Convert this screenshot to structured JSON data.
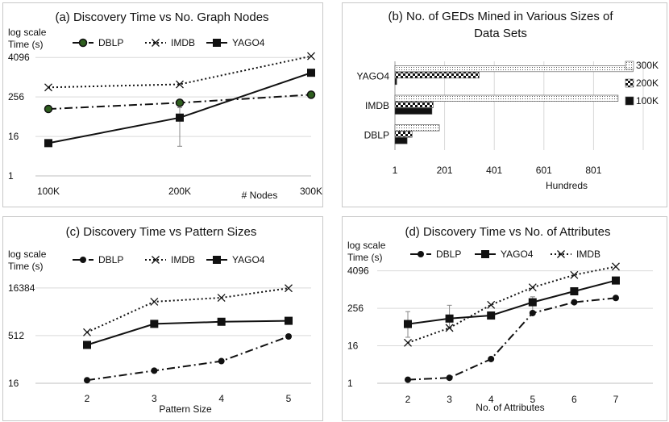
{
  "chart_data": [
    {
      "id": "a",
      "type": "line",
      "title": "(a) Discovery Time vs No. Graph Nodes",
      "ylabel_lines": [
        "log scale",
        "Time (s)"
      ],
      "xlabel": "# Nodes",
      "y_scale": "log2",
      "ylim": [
        1,
        8192
      ],
      "y_ticks": [
        1,
        16,
        256,
        4096
      ],
      "categories": [
        "100K",
        "200K",
        "300K"
      ],
      "series": [
        {
          "name": "DBLP",
          "values": [
            110,
            170,
            300
          ],
          "style": "dashdot",
          "marker": "circle-green"
        },
        {
          "name": "IMDB",
          "values": [
            500,
            620,
            4500
          ],
          "style": "dotted",
          "marker": "x"
        },
        {
          "name": "YAGO4",
          "values": [
            10,
            60,
            1400
          ],
          "style": "solid",
          "marker": "square"
        }
      ],
      "error_bars": [
        {
          "series": "YAGO4",
          "index": 1,
          "low": 8,
          "high": 120
        }
      ],
      "legend": "top"
    },
    {
      "id": "b",
      "type": "bar",
      "orientation": "horizontal",
      "title_lines": [
        "(b) No. of GEDs Mined in Various Sizes of",
        "Data Sets"
      ],
      "xlabel": "Hundreds",
      "xlim": [
        1,
        1001
      ],
      "x_ticks": [
        1,
        201,
        401,
        601,
        801
      ],
      "categories": [
        "YAGO4",
        "IMDB",
        "DBLP"
      ],
      "series": [
        {
          "name": "300K",
          "values": [
            960,
            900,
            180
          ],
          "pattern": "dots"
        },
        {
          "name": "200K",
          "values": [
            340,
            155,
            70
          ],
          "pattern": "checker"
        },
        {
          "name": "100K",
          "values": [
            8,
            150,
            50
          ],
          "pattern": "solid"
        }
      ],
      "legend": "right"
    },
    {
      "id": "c",
      "type": "line",
      "title": "(c) Discovery Time vs Pattern Sizes",
      "ylabel_lines": [
        "log scale",
        "Time (s)"
      ],
      "xlabel": "Pattern Size",
      "y_scale": "log2",
      "ylim": [
        16,
        32768
      ],
      "y_ticks": [
        16,
        512,
        16384
      ],
      "categories": [
        "2",
        "3",
        "4",
        "5"
      ],
      "series": [
        {
          "name": "DBLP",
          "values": [
            20,
            40,
            80,
            480
          ],
          "style": "dashdot",
          "marker": "circle"
        },
        {
          "name": "IMDB",
          "values": [
            650,
            6000,
            8000,
            16000
          ],
          "style": "dotted",
          "marker": "x"
        },
        {
          "name": "YAGO4",
          "values": [
            260,
            1200,
            1400,
            1500
          ],
          "style": "solid",
          "marker": "square"
        }
      ],
      "legend": "top"
    },
    {
      "id": "d",
      "type": "line",
      "title": "(d) Discovery Time vs No. of Attributes",
      "ylabel_lines": [
        "log scale",
        "Time (s)"
      ],
      "xlabel": "No. of Attributes",
      "y_scale": "log2",
      "ylim": [
        1,
        8192
      ],
      "y_ticks": [
        1,
        16,
        256,
        4096
      ],
      "categories": [
        "2",
        "3",
        "4",
        "5",
        "6",
        "7"
      ],
      "series": [
        {
          "name": "DBLP",
          "values": [
            1.3,
            1.5,
            6,
            180,
            400,
            550
          ],
          "style": "dashdot",
          "marker": "circle"
        },
        {
          "name": "YAGO4",
          "values": [
            80,
            120,
            150,
            400,
            900,
            2000
          ],
          "style": "solid",
          "marker": "square"
        },
        {
          "name": "IMDB",
          "values": [
            20,
            60,
            330,
            1200,
            3000,
            5600
          ],
          "style": "dotted",
          "marker": "x"
        }
      ],
      "error_bars": [
        {
          "series": "YAGO4",
          "index": 0,
          "low": 30,
          "high": 200
        },
        {
          "series": "YAGO4",
          "index": 1,
          "low": 60,
          "high": 320
        },
        {
          "series": "YAGO4",
          "index": 3,
          "low": 200,
          "high": 600
        },
        {
          "series": "YAGO4",
          "index": 5,
          "low": 1600,
          "high": 2400
        }
      ],
      "legend": "top"
    }
  ]
}
